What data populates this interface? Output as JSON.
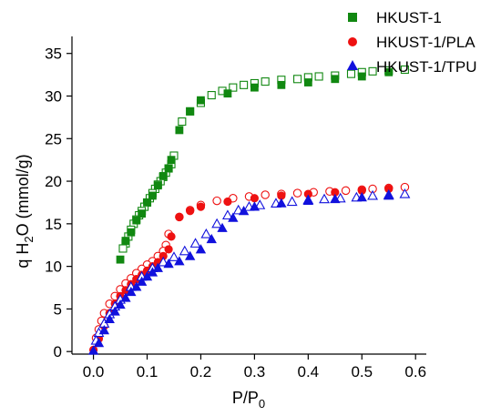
{
  "chart_data": {
    "type": "scatter",
    "xlabel": {
      "main": "P/P",
      "sub": "0"
    },
    "ylabel": {
      "pre": "q H",
      "sub": "2",
      "post": "O (mmol/g)"
    },
    "xlim": [
      -0.04,
      0.62
    ],
    "ylim": [
      -0.3,
      37
    ],
    "x_ticks": [
      0.0,
      0.1,
      0.2,
      0.3,
      0.4,
      0.5,
      0.6
    ],
    "x_tick_labels": [
      "0.0",
      "0.1",
      "0.2",
      "0.3",
      "0.4",
      "0.5",
      "0.6"
    ],
    "y_ticks": [
      0,
      5,
      10,
      15,
      20,
      25,
      30,
      35
    ],
    "y_tick_labels": [
      "0",
      "5",
      "10",
      "15",
      "20",
      "25",
      "30",
      "35"
    ],
    "grid": false,
    "legend_position": "top-right",
    "series": [
      {
        "name": "HKUST-1",
        "color": "#118811",
        "marker": "square",
        "adsorption": [
          [
            0.05,
            10.8
          ],
          [
            0.06,
            13
          ],
          [
            0.07,
            14
          ],
          [
            0.08,
            15.4
          ],
          [
            0.09,
            16.2
          ],
          [
            0.1,
            17.5
          ],
          [
            0.11,
            18.3
          ],
          [
            0.12,
            19.5
          ],
          [
            0.13,
            20.6
          ],
          [
            0.14,
            21.5
          ],
          [
            0.145,
            22.5
          ],
          [
            0.16,
            26
          ],
          [
            0.18,
            28.2
          ],
          [
            0.2,
            29.5
          ],
          [
            0.25,
            30.3
          ],
          [
            0.3,
            31
          ],
          [
            0.35,
            31.3
          ],
          [
            0.4,
            31.6
          ],
          [
            0.45,
            32
          ],
          [
            0.5,
            32.3
          ],
          [
            0.55,
            32.8
          ]
        ],
        "desorption": [
          [
            0.58,
            33.1
          ],
          [
            0.55,
            33
          ],
          [
            0.52,
            32.9
          ],
          [
            0.5,
            32.8
          ],
          [
            0.48,
            32.6
          ],
          [
            0.45,
            32.4
          ],
          [
            0.42,
            32.3
          ],
          [
            0.4,
            32.2
          ],
          [
            0.38,
            32
          ],
          [
            0.35,
            31.9
          ],
          [
            0.32,
            31.7
          ],
          [
            0.3,
            31.5
          ],
          [
            0.28,
            31.3
          ],
          [
            0.26,
            31
          ],
          [
            0.24,
            30.6
          ],
          [
            0.22,
            30.1
          ],
          [
            0.2,
            29.2
          ],
          [
            0.18,
            28.2
          ],
          [
            0.165,
            27
          ],
          [
            0.15,
            23
          ],
          [
            0.145,
            22
          ],
          [
            0.14,
            21.5
          ],
          [
            0.135,
            21
          ],
          [
            0.13,
            20.5
          ],
          [
            0.125,
            20
          ],
          [
            0.12,
            19.6
          ],
          [
            0.115,
            19.1
          ],
          [
            0.11,
            18.6
          ],
          [
            0.105,
            18
          ],
          [
            0.1,
            17.5
          ],
          [
            0.095,
            17
          ],
          [
            0.09,
            16.5
          ],
          [
            0.085,
            16
          ],
          [
            0.08,
            15.5
          ],
          [
            0.075,
            15
          ],
          [
            0.07,
            14.3
          ],
          [
            0.065,
            13.5
          ],
          [
            0.06,
            12.7
          ],
          [
            0.055,
            12.1
          ]
        ]
      },
      {
        "name": "HKUST-1/PLA",
        "color": "#ee1111",
        "marker": "circle",
        "adsorption": [
          [
            0.0,
            0.2
          ],
          [
            0.01,
            1.5
          ],
          [
            0.02,
            3
          ],
          [
            0.03,
            4.5
          ],
          [
            0.04,
            5.6
          ],
          [
            0.05,
            6.5
          ],
          [
            0.06,
            7.2
          ],
          [
            0.07,
            7.9
          ],
          [
            0.08,
            8.5
          ],
          [
            0.09,
            9
          ],
          [
            0.1,
            9.5
          ],
          [
            0.11,
            10
          ],
          [
            0.12,
            10.5
          ],
          [
            0.13,
            11.2
          ],
          [
            0.14,
            12
          ],
          [
            0.145,
            13.5
          ],
          [
            0.16,
            15.8
          ],
          [
            0.18,
            16.5
          ],
          [
            0.2,
            17
          ],
          [
            0.25,
            17.6
          ],
          [
            0.3,
            18
          ],
          [
            0.35,
            18.3
          ],
          [
            0.4,
            18.5
          ],
          [
            0.45,
            18.7
          ],
          [
            0.5,
            18.9
          ],
          [
            0.55,
            19.1
          ]
        ],
        "desorption": [
          [
            0.58,
            19.3
          ],
          [
            0.55,
            19.2
          ],
          [
            0.52,
            19.1
          ],
          [
            0.5,
            19
          ],
          [
            0.47,
            18.9
          ],
          [
            0.44,
            18.8
          ],
          [
            0.41,
            18.7
          ],
          [
            0.38,
            18.6
          ],
          [
            0.35,
            18.5
          ],
          [
            0.32,
            18.4
          ],
          [
            0.29,
            18.2
          ],
          [
            0.26,
            18
          ],
          [
            0.23,
            17.7
          ],
          [
            0.2,
            17.2
          ],
          [
            0.18,
            16.6
          ],
          [
            0.16,
            15.8
          ],
          [
            0.14,
            13.8
          ],
          [
            0.135,
            12.5
          ],
          [
            0.13,
            11.8
          ],
          [
            0.12,
            11.2
          ],
          [
            0.11,
            10.6
          ],
          [
            0.1,
            10.2
          ],
          [
            0.09,
            9.7
          ],
          [
            0.08,
            9.2
          ],
          [
            0.07,
            8.6
          ],
          [
            0.06,
            8
          ],
          [
            0.05,
            7.3
          ],
          [
            0.04,
            6.5
          ],
          [
            0.03,
            5.6
          ],
          [
            0.02,
            4.5
          ],
          [
            0.015,
            3.6
          ],
          [
            0.01,
            2.6
          ],
          [
            0.005,
            1.6
          ]
        ]
      },
      {
        "name": "HKUST-1/TPU",
        "color": "#1111dd",
        "marker": "triangle",
        "adsorption": [
          [
            0.0,
            0.1
          ],
          [
            0.01,
            1
          ],
          [
            0.02,
            2.5
          ],
          [
            0.03,
            3.8
          ],
          [
            0.04,
            4.7
          ],
          [
            0.05,
            5.5
          ],
          [
            0.06,
            6.3
          ],
          [
            0.07,
            7
          ],
          [
            0.08,
            7.6
          ],
          [
            0.09,
            8.2
          ],
          [
            0.1,
            8.8
          ],
          [
            0.11,
            9.3
          ],
          [
            0.12,
            9.8
          ],
          [
            0.14,
            10.3
          ],
          [
            0.16,
            10.6
          ],
          [
            0.18,
            11.2
          ],
          [
            0.2,
            12
          ],
          [
            0.22,
            13.2
          ],
          [
            0.24,
            14.5
          ],
          [
            0.26,
            15.7
          ],
          [
            0.28,
            16.5
          ],
          [
            0.3,
            17
          ],
          [
            0.35,
            17.4
          ],
          [
            0.4,
            17.7
          ],
          [
            0.45,
            17.9
          ],
          [
            0.5,
            18.1
          ],
          [
            0.55,
            18.3
          ]
        ],
        "desorption": [
          [
            0.58,
            18.5
          ],
          [
            0.55,
            18.4
          ],
          [
            0.52,
            18.3
          ],
          [
            0.49,
            18.1
          ],
          [
            0.46,
            18
          ],
          [
            0.43,
            17.9
          ],
          [
            0.4,
            17.8
          ],
          [
            0.37,
            17.6
          ],
          [
            0.34,
            17.4
          ],
          [
            0.31,
            17.2
          ],
          [
            0.29,
            17
          ],
          [
            0.27,
            16.6
          ],
          [
            0.25,
            16
          ],
          [
            0.23,
            15
          ],
          [
            0.21,
            13.8
          ],
          [
            0.19,
            12.7
          ],
          [
            0.17,
            11.8
          ],
          [
            0.15,
            11.1
          ],
          [
            0.13,
            10.5
          ],
          [
            0.11,
            9.8
          ],
          [
            0.09,
            8.8
          ],
          [
            0.07,
            7.6
          ],
          [
            0.05,
            6.1
          ],
          [
            0.04,
            5.3
          ],
          [
            0.03,
            4.4
          ],
          [
            0.02,
            3.3
          ],
          [
            0.01,
            2.2
          ],
          [
            0.005,
            1.3
          ]
        ]
      }
    ]
  }
}
